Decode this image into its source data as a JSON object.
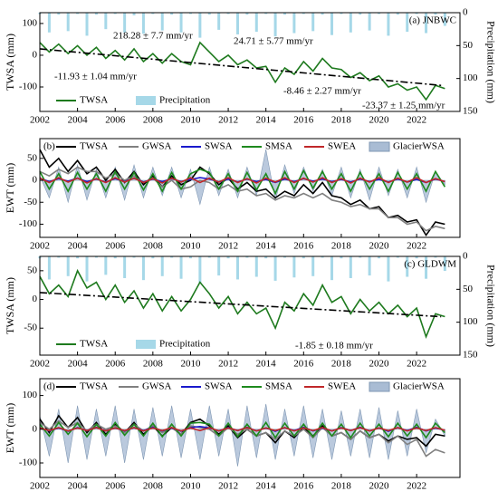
{
  "chart_data": [
    {
      "type": "line",
      "panel_label": "(a) JNBWC",
      "ylabel": "TWSA (mm)",
      "y2label": "Precipitation (mm)",
      "x": [
        2002,
        2002.5,
        2003,
        2003.5,
        2004,
        2004.5,
        2005,
        2005.5,
        2006,
        2006.5,
        2007,
        2007.5,
        2008,
        2008.5,
        2009,
        2009.5,
        2010,
        2010.5,
        2011,
        2011.5,
        2012,
        2012.5,
        2013,
        2013.5,
        2014,
        2014.5,
        2015,
        2015.5,
        2016,
        2016.5,
        2017,
        2017.5,
        2018,
        2018.5,
        2019,
        2019.5,
        2020,
        2020.5,
        2021,
        2021.5,
        2022,
        2022.5,
        2023,
        2023.5
      ],
      "xlim": [
        2002,
        2024.3
      ],
      "xticks": [
        2002,
        2004,
        2006,
        2008,
        2010,
        2012,
        2014,
        2016,
        2018,
        2020,
        2022
      ],
      "ylim": [
        -177,
        134
      ],
      "yticks": [
        -100,
        0,
        100
      ],
      "y2lim": [
        0,
        150
      ],
      "y2ticks": [
        0,
        50,
        100,
        150
      ],
      "y2_inverted": true,
      "series": [
        {
          "name": "Precipitation",
          "color": "#a6d8e8",
          "style": "bar",
          "axis": "y2",
          "values": [
            2,
            30,
            3,
            28,
            2,
            35,
            3,
            25,
            2,
            30,
            4,
            32,
            2,
            27,
            3,
            30,
            2,
            38,
            3,
            26,
            2,
            33,
            3,
            29,
            2,
            36,
            3,
            31,
            2,
            28,
            3,
            34,
            2,
            30,
            3,
            27,
            2,
            35,
            3,
            29,
            2,
            31,
            3,
            20
          ]
        },
        {
          "name": "TWSA",
          "color": "#1e7a1e",
          "style": "line",
          "values": [
            40,
            10,
            35,
            5,
            30,
            0,
            25,
            -10,
            15,
            -15,
            20,
            -20,
            5,
            -25,
            5,
            -20,
            -30,
            40,
            10,
            -20,
            0,
            -30,
            -15,
            -40,
            -35,
            -85,
            -40,
            -60,
            -20,
            -50,
            -10,
            -40,
            -45,
            -70,
            -55,
            -80,
            -65,
            -100,
            -90,
            -110,
            -100,
            -140,
            -95,
            -105
          ]
        }
      ],
      "trend": {
        "color": "#000000",
        "x": [
          2002,
          2023.3
        ],
        "values": [
          20,
          -95
        ]
      },
      "annotations": [
        {
          "text": "218.28 ± 7.7 mm/yr",
          "color": "#1a1acc"
        },
        {
          "text": "24.71 ± 5.77 mm/yr",
          "color": "#1a1acc"
        },
        {
          "text": "-11.93 ± 1.04 mm/yr",
          "color": "#c0282a"
        },
        {
          "text": "-8.46 ± 2.27 mm/yr",
          "color": "#c0282a"
        },
        {
          "text": "-23.37 ± 1.25 mm/yr",
          "color": "#c0282a"
        }
      ]
    },
    {
      "type": "line",
      "panel_label": "(b)",
      "ylabel": "EWT (mm)",
      "x": [
        2002,
        2002.5,
        2003,
        2003.5,
        2004,
        2004.5,
        2005,
        2005.5,
        2006,
        2006.5,
        2007,
        2007.5,
        2008,
        2008.5,
        2009,
        2009.5,
        2010,
        2010.5,
        2011,
        2011.5,
        2012,
        2012.5,
        2013,
        2013.5,
        2014,
        2014.5,
        2015,
        2015.5,
        2016,
        2016.5,
        2017,
        2017.5,
        2018,
        2018.5,
        2019,
        2019.5,
        2020,
        2020.5,
        2021,
        2021.5,
        2022,
        2022.5,
        2023,
        2023.5
      ],
      "xlim": [
        2002,
        2024.3
      ],
      "xticks": [
        2002,
        2004,
        2006,
        2008,
        2010,
        2012,
        2014,
        2016,
        2018,
        2020,
        2022
      ],
      "ylim": [
        -130,
        95
      ],
      "yticks": [
        -100,
        -50,
        0,
        50
      ],
      "series": [
        {
          "name": "TWSA",
          "color": "#000000",
          "style": "line",
          "values": [
            70,
            30,
            50,
            20,
            45,
            15,
            30,
            0,
            25,
            -5,
            20,
            -10,
            10,
            -15,
            10,
            -10,
            0,
            30,
            15,
            -10,
            5,
            -20,
            -5,
            -25,
            -20,
            -40,
            -25,
            -35,
            -10,
            -30,
            -5,
            -35,
            -40,
            -55,
            -45,
            -65,
            -60,
            -85,
            -80,
            -95,
            -90,
            -125,
            -95,
            -100
          ]
        },
        {
          "name": "GWSA",
          "color": "#808080",
          "style": "line",
          "values": [
            20,
            10,
            25,
            15,
            30,
            20,
            20,
            5,
            15,
            0,
            10,
            -5,
            5,
            -15,
            0,
            -20,
            -15,
            0,
            -5,
            -20,
            -10,
            -25,
            -20,
            -35,
            -30,
            -45,
            -35,
            -40,
            -30,
            -40,
            -30,
            -45,
            -50,
            -60,
            -55,
            -65,
            -65,
            -85,
            -85,
            -100,
            -95,
            -115,
            -105,
            -110
          ]
        },
        {
          "name": "SWSA",
          "color": "#1a1acc",
          "style": "line",
          "values": [
            5,
            -3,
            4,
            -2,
            5,
            -3,
            3,
            -4,
            4,
            -3,
            5,
            -4,
            3,
            -3,
            4,
            -3,
            2,
            6,
            3,
            -4,
            3,
            -4,
            3,
            -3,
            2,
            -5,
            3,
            -3,
            4,
            -2,
            3,
            -3,
            2,
            -4,
            3,
            -3,
            2,
            -4,
            3,
            -4,
            2,
            -5,
            3,
            -3
          ]
        },
        {
          "name": "SMSA",
          "color": "#1e8a1e",
          "style": "line",
          "values": [
            20,
            -20,
            15,
            -25,
            18,
            -20,
            15,
            -25,
            20,
            -20,
            18,
            -22,
            15,
            -25,
            18,
            -20,
            15,
            25,
            18,
            -20,
            15,
            -25,
            18,
            -22,
            15,
            -30,
            20,
            -20,
            22,
            -18,
            20,
            -20,
            15,
            -25,
            18,
            -20,
            15,
            -25,
            18,
            -20,
            15,
            -25,
            20,
            -15
          ]
        },
        {
          "name": "SWEA",
          "color": "#c0282a",
          "style": "line",
          "values": [
            5,
            -5,
            6,
            -4,
            5,
            -6,
            4,
            -5,
            6,
            -4,
            5,
            -5,
            4,
            -6,
            5,
            -4,
            6,
            -5,
            5,
            -4,
            6,
            -5,
            4,
            -6,
            5,
            -4,
            6,
            -5,
            5,
            -4,
            6,
            -5,
            4,
            -6,
            5,
            -4,
            6,
            -5,
            5,
            -4,
            6,
            -5,
            4,
            -3
          ]
        },
        {
          "name": "GlacierWSA",
          "color": "#a9bcd4",
          "style": "area",
          "values": [
            10,
            -40,
            30,
            -50,
            35,
            -45,
            25,
            -40,
            30,
            -45,
            35,
            -40,
            30,
            -35,
            30,
            -40,
            25,
            -55,
            30,
            -35,
            25,
            -40,
            30,
            -35,
            70,
            -45,
            35,
            -30,
            30,
            -25,
            25,
            -35,
            30,
            -40,
            25,
            -45,
            30,
            -35,
            25,
            -40,
            30,
            -50,
            20,
            -10
          ]
        }
      ]
    },
    {
      "type": "line",
      "panel_label": "(c) GLDWM",
      "ylabel": "TWSA (mm)",
      "y2label": "Precipitation (mm)",
      "x": [
        2002,
        2002.5,
        2003,
        2003.5,
        2004,
        2004.5,
        2005,
        2005.5,
        2006,
        2006.5,
        2007,
        2007.5,
        2008,
        2008.5,
        2009,
        2009.5,
        2010,
        2010.5,
        2011,
        2011.5,
        2012,
        2012.5,
        2013,
        2013.5,
        2014,
        2014.5,
        2015,
        2015.5,
        2016,
        2016.5,
        2017,
        2017.5,
        2018,
        2018.5,
        2019,
        2019.5,
        2020,
        2020.5,
        2021,
        2021.5,
        2022,
        2022.5,
        2023,
        2023.5
      ],
      "xlim": [
        2002,
        2024.3
      ],
      "xticks": [
        2002,
        2004,
        2006,
        2008,
        2010,
        2012,
        2014,
        2016,
        2018,
        2020,
        2022
      ],
      "ylim": [
        -97,
        75
      ],
      "yticks": [
        -50,
        0,
        50
      ],
      "y2lim": [
        0,
        150
      ],
      "y2ticks": [
        0,
        50,
        100,
        150
      ],
      "y2_inverted": true,
      "series": [
        {
          "name": "Precipitation",
          "color": "#a6d8e8",
          "style": "bar",
          "axis": "y2",
          "values": [
            3,
            35,
            2,
            30,
            3,
            38,
            2,
            28,
            3,
            33,
            2,
            36,
            3,
            30,
            2,
            34,
            3,
            40,
            2,
            29,
            3,
            35,
            2,
            31,
            3,
            37,
            2,
            32,
            3,
            30,
            2,
            36,
            3,
            33,
            2,
            29,
            3,
            38,
            2,
            31,
            3,
            34,
            2,
            22
          ]
        },
        {
          "name": "TWSA",
          "color": "#1e7a1e",
          "style": "line",
          "values": [
            40,
            10,
            25,
            5,
            50,
            20,
            30,
            0,
            25,
            -5,
            15,
            -15,
            10,
            -20,
            5,
            -20,
            0,
            30,
            10,
            -15,
            5,
            -25,
            -5,
            -25,
            -15,
            -50,
            -5,
            -20,
            10,
            -10,
            25,
            -5,
            5,
            -25,
            0,
            -20,
            -5,
            -25,
            -10,
            -30,
            -15,
            -65,
            -25,
            -30
          ]
        }
      ],
      "trend": {
        "color": "#000000",
        "x": [
          2002,
          2023.3
        ],
        "values": [
          12,
          -30
        ]
      },
      "annotations": [
        {
          "text": "-1.85 ± 0.18 mm/yr",
          "color": "#000000"
        }
      ]
    },
    {
      "type": "line",
      "panel_label": "(d)",
      "ylabel": "EWT (mm)",
      "x": [
        2002,
        2002.5,
        2003,
        2003.5,
        2004,
        2004.5,
        2005,
        2005.5,
        2006,
        2006.5,
        2007,
        2007.5,
        2008,
        2008.5,
        2009,
        2009.5,
        2010,
        2010.5,
        2011,
        2011.5,
        2012,
        2012.5,
        2013,
        2013.5,
        2014,
        2014.5,
        2015,
        2015.5,
        2016,
        2016.5,
        2017,
        2017.5,
        2018,
        2018.5,
        2019,
        2019.5,
        2020,
        2020.5,
        2021,
        2021.5,
        2022,
        2022.5,
        2023,
        2023.5
      ],
      "xlim": [
        2002,
        2024.3
      ],
      "xticks": [
        2002,
        2004,
        2006,
        2008,
        2010,
        2012,
        2014,
        2016,
        2018,
        2020,
        2022
      ],
      "ylim": [
        -143,
        150
      ],
      "yticks": [
        -100,
        0,
        100
      ],
      "series": [
        {
          "name": "TWSA",
          "color": "#000000",
          "style": "line",
          "values": [
            30,
            -10,
            40,
            5,
            35,
            -10,
            20,
            -15,
            15,
            -10,
            20,
            -15,
            10,
            -20,
            5,
            -15,
            20,
            30,
            10,
            -15,
            10,
            -25,
            0,
            -20,
            -10,
            -40,
            -5,
            -25,
            5,
            -20,
            10,
            -20,
            -10,
            -30,
            -5,
            -25,
            -15,
            -35,
            -20,
            -30,
            -25,
            -50,
            -15,
            -20
          ]
        },
        {
          "name": "GWSA",
          "color": "#808080",
          "style": "line",
          "values": [
            20,
            0,
            25,
            5,
            20,
            -5,
            15,
            0,
            10,
            -10,
            15,
            -5,
            10,
            -10,
            5,
            -15,
            10,
            5,
            0,
            -20,
            5,
            -15,
            0,
            -20,
            -10,
            -30,
            -5,
            -20,
            0,
            -25,
            5,
            -20,
            -10,
            -30,
            -5,
            -25,
            -15,
            -40,
            -20,
            -45,
            -30,
            -80,
            -60,
            -70
          ]
        },
        {
          "name": "SWSA",
          "color": "#1a1acc",
          "style": "line",
          "values": [
            5,
            -5,
            4,
            -6,
            5,
            -4,
            6,
            -5,
            4,
            -5,
            5,
            -4,
            6,
            -5,
            4,
            -6,
            5,
            8,
            4,
            -5,
            5,
            -4,
            6,
            -5,
            4,
            -6,
            5,
            -4,
            6,
            -5,
            4,
            -5,
            5,
            -4,
            6,
            -5,
            4,
            -6,
            5,
            -4,
            6,
            -5,
            4,
            -3
          ]
        },
        {
          "name": "SMSA",
          "color": "#1e8a1e",
          "style": "line",
          "values": [
            15,
            -20,
            20,
            -15,
            18,
            -22,
            15,
            -20,
            20,
            -18,
            15,
            -20,
            18,
            -22,
            15,
            -20,
            18,
            20,
            15,
            -20,
            18,
            -22,
            15,
            -20,
            20,
            -25,
            18,
            -20,
            15,
            -22,
            18,
            -20,
            15,
            -25,
            18,
            -20,
            15,
            -22,
            18,
            -20,
            15,
            -25,
            18,
            -10
          ]
        },
        {
          "name": "SWEA",
          "color": "#c0282a",
          "style": "line",
          "values": [
            4,
            -4,
            5,
            -5,
            4,
            -4,
            5,
            -5,
            4,
            -4,
            5,
            -5,
            4,
            -4,
            5,
            -5,
            4,
            -4,
            5,
            -5,
            4,
            -4,
            5,
            -5,
            4,
            -4,
            5,
            -5,
            4,
            -4,
            5,
            -5,
            4,
            -4,
            5,
            -5,
            4,
            -4,
            5,
            -5,
            4,
            -4,
            5,
            -3
          ]
        },
        {
          "name": "GlacierWSA",
          "color": "#a9bcd4",
          "style": "area",
          "values": [
            40,
            -80,
            60,
            -100,
            70,
            -90,
            60,
            -80,
            70,
            -100,
            60,
            -90,
            65,
            -80,
            70,
            -85,
            60,
            -90,
            70,
            -80,
            60,
            -110,
            70,
            -85,
            75,
            -90,
            60,
            -80,
            70,
            -85,
            60,
            -90,
            55,
            -80,
            60,
            -85,
            65,
            -90,
            55,
            -80,
            60,
            -70,
            30,
            -20
          ]
        }
      ]
    }
  ]
}
